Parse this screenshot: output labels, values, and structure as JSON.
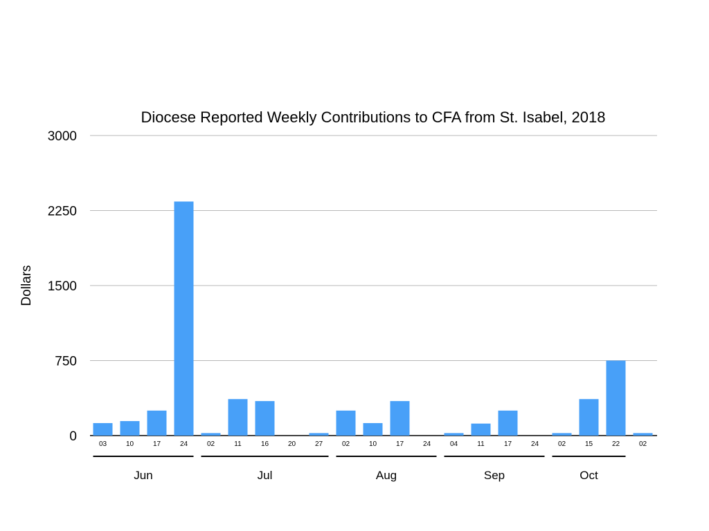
{
  "chart_data": {
    "type": "bar",
    "title": "Diocese Reported Weekly Contributions to CFA from St. Isabel, 2018",
    "xlabel": "",
    "ylabel": "Dollars",
    "ylim": [
      0,
      3000
    ],
    "yticks": [
      "0",
      "750",
      "1500",
      "2250",
      "3000"
    ],
    "grid": true,
    "bar_color": "#48a0f8",
    "categories": [
      "03",
      "10",
      "17",
      "24",
      "02",
      "11",
      "16",
      "20",
      "27",
      "02",
      "10",
      "17",
      "24",
      "04",
      "11",
      "17",
      "24",
      "02",
      "15",
      "22",
      "02"
    ],
    "values": [
      125,
      145,
      250,
      2340,
      25,
      365,
      345,
      0,
      25,
      250,
      125,
      345,
      0,
      25,
      120,
      250,
      0,
      25,
      365,
      750,
      25
    ],
    "month_groups": [
      {
        "label": "Jun",
        "from": 0,
        "to": 3
      },
      {
        "label": "Jul",
        "from": 4,
        "to": 8
      },
      {
        "label": "Aug",
        "from": 9,
        "to": 12
      },
      {
        "label": "Sep",
        "from": 13,
        "to": 16
      },
      {
        "label": "Oct",
        "from": 17,
        "to": 19
      }
    ]
  }
}
